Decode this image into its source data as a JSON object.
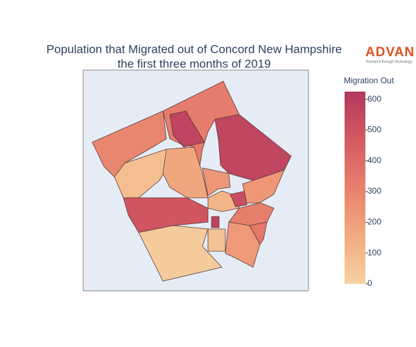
{
  "chart_data": {
    "type": "choropleth",
    "title": "Population that Migrated out of Concord New Hampshire",
    "subtitle": "the first three months of 2019",
    "colorbar_title": "Migration Out",
    "colorscale": [
      "#f6d2a2",
      "#f2ab80",
      "#e8806c",
      "#d45a62",
      "#b3385e"
    ],
    "clim": [
      0,
      625
    ],
    "cticks": [
      0,
      100,
      200,
      300,
      400,
      500,
      600
    ],
    "values": [
      290,
      330,
      560,
      570,
      80,
      170,
      230,
      490,
      30,
      120,
      530,
      230,
      320,
      580,
      220,
      350,
      60
    ]
  },
  "logo": {
    "text": "ADVAN",
    "tagline": "Research through Technology"
  }
}
